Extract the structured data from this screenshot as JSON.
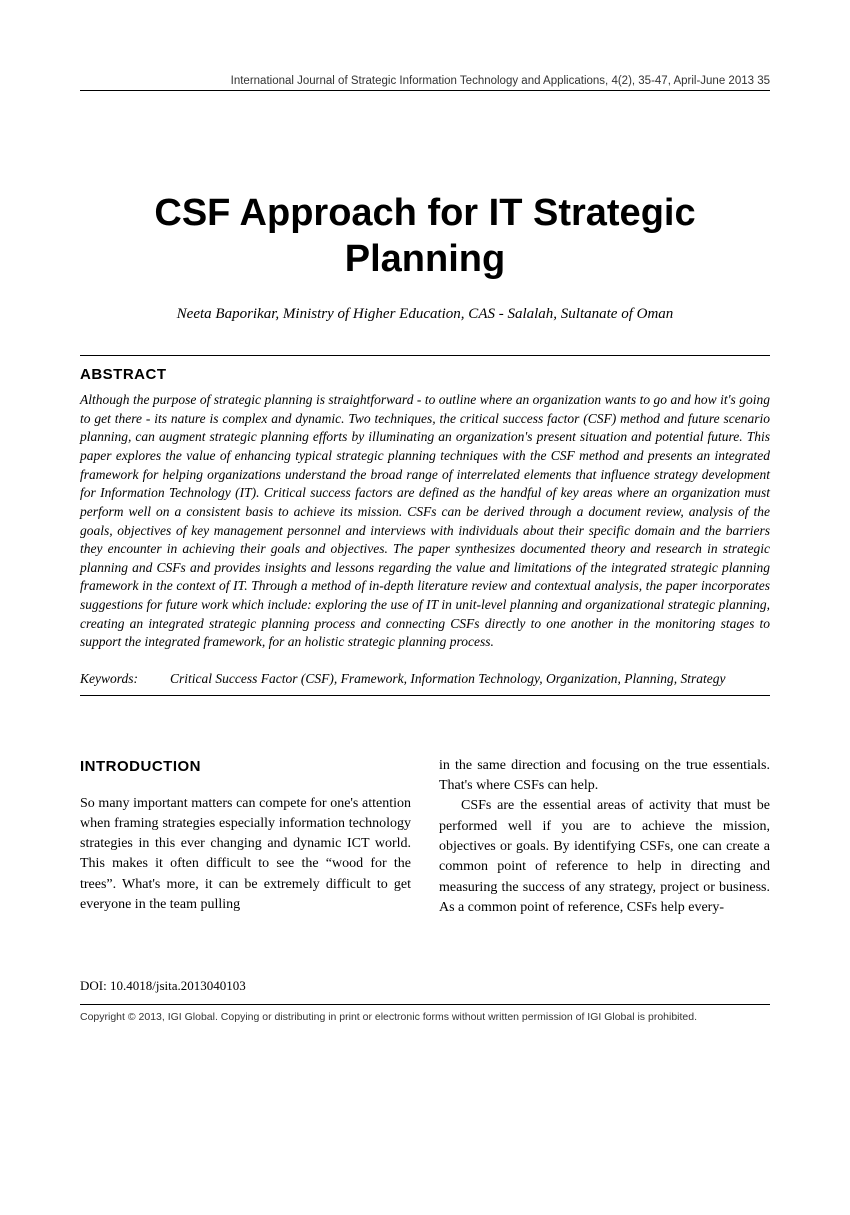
{
  "runningHead": "International Journal of Strategic Information Technology and Applications, 4(2), 35-47, April-June 2013   35",
  "title": "CSF Approach for IT Strategic Planning",
  "authorLine": "Neeta Baporikar, Ministry of Higher Education, CAS - Salalah, Sultanate of Oman",
  "abstractHeading": "ABSTRACT",
  "abstractText": "Although the purpose of strategic planning is straightforward - to outline where an organization wants to go and how it's going to get there - its nature is complex and dynamic. Two techniques, the critical success factor (CSF) method and future scenario planning, can augment strategic planning efforts by illuminating an organization's present situation and potential future. This paper explores the value of enhancing typical strategic planning techniques with the CSF method and presents an integrated framework for helping organizations understand the broad range of interrelated elements that influence strategy development for Information Technology (IT). Critical success factors are defined as the handful of key areas where an organization must perform well on a consistent basis to achieve its mission. CSFs can be derived through a document review, analysis of the goals, objectives of key management personnel and interviews with individuals about their specific domain and the barriers they encounter in achieving their goals and objectives. The paper synthesizes documented theory and research in strategic planning and CSFs and provides insights and lessons regarding the value and limitations of the integrated strategic planning framework in the context of IT. Through a method of in-depth literature review and contextual analysis, the paper incorporates suggestions for future work which include: exploring the use of IT in unit-level planning and organizational strategic planning, creating an integrated strategic planning process and connecting CSFs directly to one another in the monitoring stages to support the integrated framework, for an holistic strategic planning process.",
  "keywordsLabel": "Keywords:",
  "keywordsText": "Critical Success Factor (CSF), Framework, Information Technology, Organization, Planning, Strategy",
  "introHeading": "INTRODUCTION",
  "colLeft": "So many important matters can compete for one's attention when framing strategies especially information technology strategies in this ever changing and dynamic ICT world. This makes it often difficult to see the “wood for the trees”. What's more, it can be extremely difficult to get everyone in the team pulling",
  "colRightPara1": "in the same direction and focusing on the true essentials. That's where CSFs can help.",
  "colRightPara2": "CSFs are the essential areas of activity that must be performed well if you are to achieve the mission, objectives or goals. By identifying CSFs, one can create a common point of reference to help in directing and measuring the success of any strategy, project or business. As a common point of reference, CSFs help every-",
  "doi": "DOI: 10.4018/jsita.2013040103",
  "copyright": "Copyright © 2013, IGI Global. Copying or distributing in print or electronic forms without written permission of IGI Global is prohibited."
}
